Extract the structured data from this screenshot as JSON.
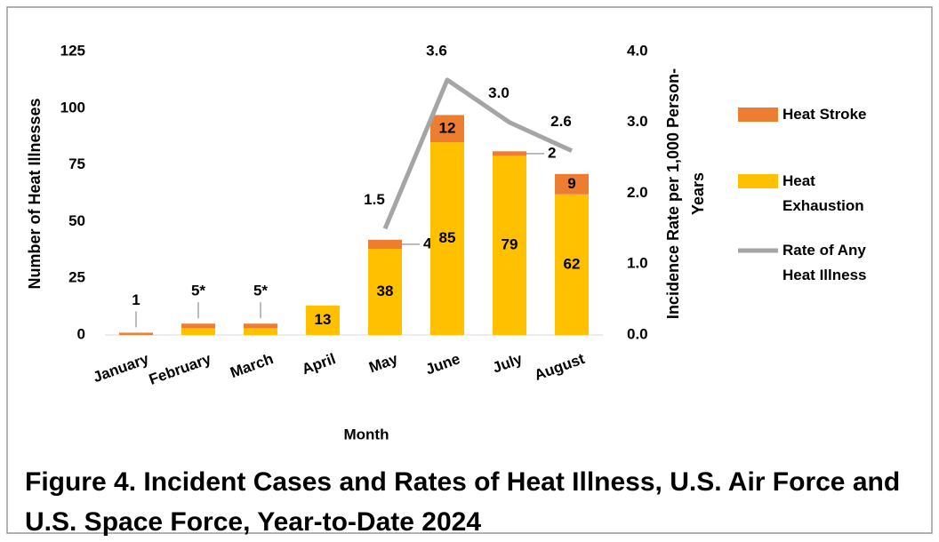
{
  "chart_data": {
    "type": "bar",
    "stacked": true,
    "title": "Figure 4. Incident Cases and Rates of Heat Illness, U.S. Air Force and U.S. Space Force, Year-to-Date 2024",
    "xlabel": "Month",
    "ylabel": "Number of Heat Illnesses",
    "y2label": "Incidence Rate per 1,000 Person-Years",
    "categories": [
      "January",
      "February",
      "March",
      "April",
      "May",
      "June",
      "July",
      "August"
    ],
    "series": [
      {
        "name": "Heat Exhaustion",
        "color": "#ffc000",
        "values": [
          0,
          3,
          3,
          13,
          38,
          85,
          79,
          62
        ],
        "value_labels": [
          null,
          null,
          null,
          "13",
          "38",
          "85",
          "79",
          "62"
        ]
      },
      {
        "name": "Heat Stroke",
        "color": "#ed7d31",
        "values": [
          1,
          2,
          2,
          0,
          4,
          12,
          2,
          9
        ],
        "value_labels": [
          null,
          null,
          null,
          null,
          "4",
          "12",
          "2",
          "9"
        ]
      },
      {
        "name": "Rate of Any Heat Illness",
        "type": "line",
        "axis": "y2",
        "color": "#a5a5a5",
        "values": [
          null,
          null,
          null,
          null,
          1.5,
          3.6,
          3.0,
          2.6
        ],
        "value_labels": [
          null,
          null,
          null,
          null,
          "1.5",
          "3.6",
          "3.0",
          "2.6"
        ]
      }
    ],
    "annotations": [
      {
        "x": "January",
        "y": 1,
        "label": "1"
      },
      {
        "x": "February",
        "y": 5,
        "label": "5*"
      },
      {
        "x": "March",
        "y": 5,
        "label": "5*"
      }
    ],
    "legend_order": [
      1,
      0,
      2
    ],
    "legend": "right",
    "ylim": [
      0,
      125
    ],
    "yticks": [
      0,
      25,
      50,
      75,
      100,
      125
    ],
    "y2lim": [
      0,
      4
    ],
    "y2ticks": [
      {
        "value": 0,
        "label": "0.0"
      },
      {
        "value": 1,
        "label": "1.0"
      },
      {
        "value": 2,
        "label": "2.0"
      },
      {
        "value": 3,
        "label": "3.0"
      },
      {
        "value": 4,
        "label": "4.0"
      }
    ]
  }
}
